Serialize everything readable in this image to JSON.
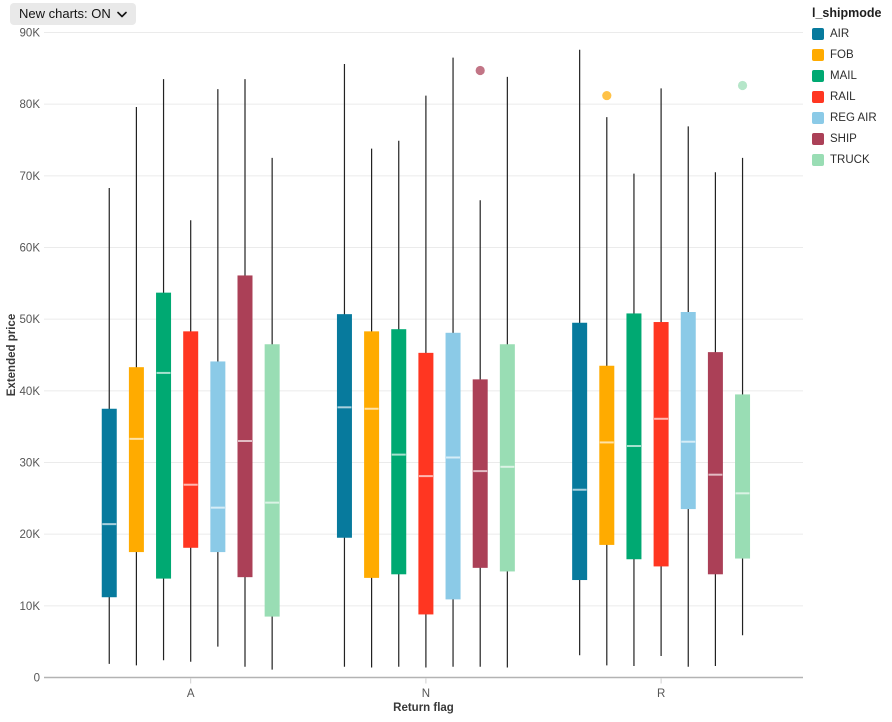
{
  "toolbar": {
    "new_charts_label": "New charts: ON"
  },
  "colors": {
    "pill_bg": "#e9e9e9",
    "grid": "#ebebeb",
    "axis_line": "#b3b3b3",
    "whisker": "#222222",
    "tick_text": "#565656"
  },
  "chart_data": {
    "type": "box",
    "title": "",
    "xlabel": "Return flag",
    "ylabel": "Extended price",
    "legend_title": "l_shipmode",
    "legend_position": "top-right",
    "grid": "horizontal",
    "categories": [
      "A",
      "N",
      "R"
    ],
    "ylim": [
      0,
      90000
    ],
    "y_ticks": [
      {
        "value": 0,
        "label": "0"
      },
      {
        "value": 10000,
        "label": "10K"
      },
      {
        "value": 20000,
        "label": "20K"
      },
      {
        "value": 30000,
        "label": "30K"
      },
      {
        "value": 40000,
        "label": "40K"
      },
      {
        "value": 50000,
        "label": "50K"
      },
      {
        "value": 60000,
        "label": "60K"
      },
      {
        "value": 70000,
        "label": "70K"
      },
      {
        "value": 80000,
        "label": "80K"
      },
      {
        "value": 90000,
        "label": "90K"
      }
    ],
    "series": [
      {
        "name": "AIR",
        "color": "#077A9D",
        "boxes": [
          {
            "category": "A",
            "low": 1900,
            "q1": 11200,
            "median": 21400,
            "q3": 37500,
            "high": 68300,
            "outliers": []
          },
          {
            "category": "N",
            "low": 1500,
            "q1": 19500,
            "median": 37700,
            "q3": 50700,
            "high": 85600,
            "outliers": []
          },
          {
            "category": "R",
            "low": 3100,
            "q1": 13600,
            "median": 26200,
            "q3": 49500,
            "high": 87600,
            "outliers": []
          }
        ]
      },
      {
        "name": "FOB",
        "color": "#FFAB00",
        "boxes": [
          {
            "category": "A",
            "low": 1700,
            "q1": 17500,
            "median": 33300,
            "q3": 43300,
            "high": 79600,
            "outliers": []
          },
          {
            "category": "N",
            "low": 1400,
            "q1": 13900,
            "median": 37500,
            "q3": 48300,
            "high": 73800,
            "outliers": []
          },
          {
            "category": "R",
            "low": 1700,
            "q1": 18500,
            "median": 32800,
            "q3": 43500,
            "high": 78200,
            "outliers": [
              81200
            ]
          }
        ]
      },
      {
        "name": "MAIL",
        "color": "#00A972",
        "boxes": [
          {
            "category": "A",
            "low": 2400,
            "q1": 13800,
            "median": 42500,
            "q3": 53700,
            "high": 83500,
            "outliers": []
          },
          {
            "category": "N",
            "low": 1500,
            "q1": 14400,
            "median": 31100,
            "q3": 48600,
            "high": 74900,
            "outliers": []
          },
          {
            "category": "R",
            "low": 1600,
            "q1": 16500,
            "median": 32300,
            "q3": 50800,
            "high": 70300,
            "outliers": []
          }
        ]
      },
      {
        "name": "RAIL",
        "color": "#FF3621",
        "boxes": [
          {
            "category": "A",
            "low": 2200,
            "q1": 18100,
            "median": 26900,
            "q3": 48300,
            "high": 63800,
            "outliers": []
          },
          {
            "category": "N",
            "low": 1400,
            "q1": 8800,
            "median": 28100,
            "q3": 45300,
            "high": 81200,
            "outliers": []
          },
          {
            "category": "R",
            "low": 3000,
            "q1": 15500,
            "median": 36100,
            "q3": 49600,
            "high": 82200,
            "outliers": []
          }
        ]
      },
      {
        "name": "REG AIR",
        "color": "#8BCAE7",
        "boxes": [
          {
            "category": "A",
            "low": 4300,
            "q1": 17500,
            "median": 23700,
            "q3": 44100,
            "high": 82100,
            "outliers": []
          },
          {
            "category": "N",
            "low": 1500,
            "q1": 10900,
            "median": 30700,
            "q3": 48100,
            "high": 86500,
            "outliers": []
          },
          {
            "category": "R",
            "low": 1500,
            "q1": 23500,
            "median": 32900,
            "q3": 51000,
            "high": 76900,
            "outliers": []
          }
        ]
      },
      {
        "name": "SHIP",
        "color": "#AB4057",
        "boxes": [
          {
            "category": "A",
            "low": 1500,
            "q1": 14000,
            "median": 33000,
            "q3": 56100,
            "high": 83500,
            "outliers": []
          },
          {
            "category": "N",
            "low": 1500,
            "q1": 15300,
            "median": 28800,
            "q3": 41600,
            "high": 66600,
            "outliers": [
              84700
            ]
          },
          {
            "category": "R",
            "low": 1600,
            "q1": 14400,
            "median": 28300,
            "q3": 45400,
            "high": 70500,
            "outliers": []
          }
        ]
      },
      {
        "name": "TRUCK",
        "color": "#99DDB4",
        "boxes": [
          {
            "category": "A",
            "low": 1100,
            "q1": 8500,
            "median": 24400,
            "q3": 46500,
            "high": 72500,
            "outliers": []
          },
          {
            "category": "N",
            "low": 1400,
            "q1": 14800,
            "median": 29400,
            "q3": 46500,
            "high": 83800,
            "outliers": []
          },
          {
            "category": "R",
            "low": 5900,
            "q1": 16600,
            "median": 25700,
            "q3": 39500,
            "high": 72500,
            "outliers": [
              82600
            ]
          }
        ]
      }
    ]
  }
}
